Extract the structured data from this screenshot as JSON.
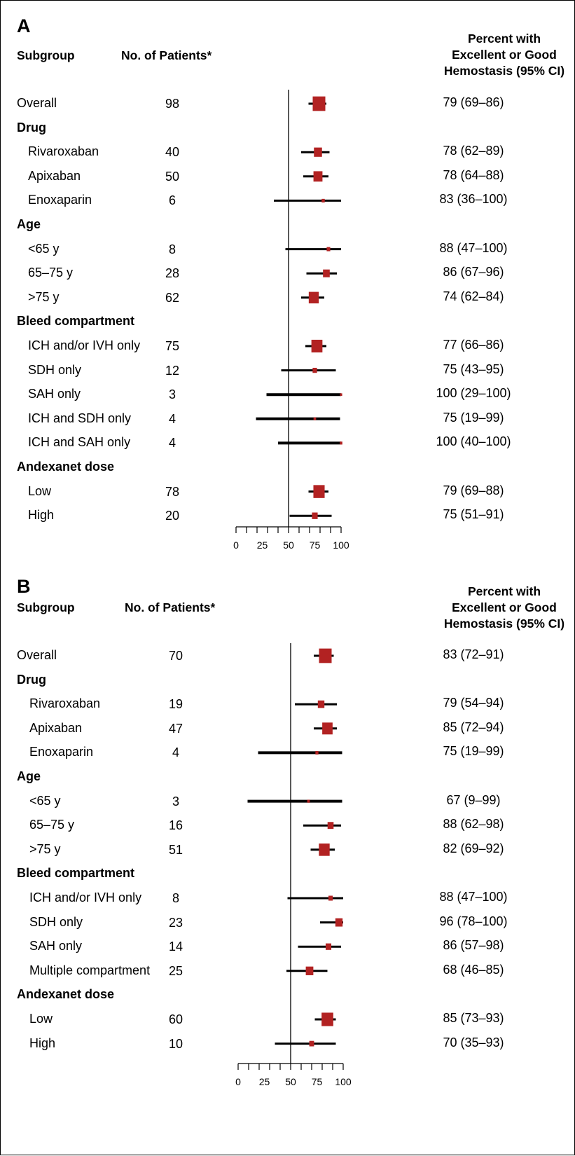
{
  "chart_data": [
    {
      "type": "forest",
      "panel": "A",
      "header": {
        "subgroup": "Subgroup",
        "n": "No. of Patients*",
        "ci": [
          "Percent with",
          "Excellent or Good",
          "Hemostasis (95% CI)"
        ]
      },
      "xlim": [
        0,
        100
      ],
      "xticks": [
        "0",
        "25",
        "50",
        "75",
        "100"
      ],
      "xtick_values": [
        0,
        25,
        50,
        75,
        100
      ],
      "refline": 50,
      "color": "#b22222",
      "rows": [
        {
          "label": "Overall",
          "group": false,
          "indent": false,
          "n": "98",
          "estimate": 79,
          "lo": 69,
          "hi": 86,
          "ci": "79 (69–86)"
        },
        {
          "label": "Drug",
          "group": true
        },
        {
          "label": "Rivaroxaban",
          "group": false,
          "indent": true,
          "n": "40",
          "estimate": 78,
          "lo": 62,
          "hi": 89,
          "ci": "78 (62–89)"
        },
        {
          "label": "Apixaban",
          "group": false,
          "indent": true,
          "n": "50",
          "estimate": 78,
          "lo": 64,
          "hi": 88,
          "ci": "78 (64–88)"
        },
        {
          "label": "Enoxaparin",
          "group": false,
          "indent": true,
          "n": "6",
          "estimate": 83,
          "lo": 36,
          "hi": 100,
          "ci": "83 (36–100)"
        },
        {
          "label": "Age",
          "group": true
        },
        {
          "label": "<65 y",
          "group": false,
          "indent": true,
          "n": "8",
          "estimate": 88,
          "lo": 47,
          "hi": 100,
          "ci": "88 (47–100)"
        },
        {
          "label": "65–75 y",
          "group": false,
          "indent": true,
          "n": "28",
          "estimate": 86,
          "lo": 67,
          "hi": 96,
          "ci": "86 (67–96)"
        },
        {
          "label": ">75 y",
          "group": false,
          "indent": true,
          "n": "62",
          "estimate": 74,
          "lo": 62,
          "hi": 84,
          "ci": "74 (62–84)"
        },
        {
          "label": "Bleed compartment",
          "group": true
        },
        {
          "label": "ICH and/or IVH only",
          "group": false,
          "indent": true,
          "n": "75",
          "estimate": 77,
          "lo": 66,
          "hi": 86,
          "ci": "77 (66–86)"
        },
        {
          "label": "SDH only",
          "group": false,
          "indent": true,
          "n": "12",
          "estimate": 75,
          "lo": 43,
          "hi": 95,
          "ci": "75 (43–95)"
        },
        {
          "label": "SAH only",
          "group": false,
          "indent": true,
          "n": "3",
          "estimate": 100,
          "lo": 29,
          "hi": 100,
          "ci": "100 (29–100)"
        },
        {
          "label": "ICH and SDH only",
          "group": false,
          "indent": true,
          "n": "4",
          "estimate": 75,
          "lo": 19,
          "hi": 99,
          "ci": "75 (19–99)"
        },
        {
          "label": "ICH and SAH only",
          "group": false,
          "indent": true,
          "n": "4",
          "estimate": 100,
          "lo": 40,
          "hi": 100,
          "ci": "100 (40–100)"
        },
        {
          "label": "Andexanet dose",
          "group": true
        },
        {
          "label": "Low",
          "group": false,
          "indent": true,
          "n": "78",
          "estimate": 79,
          "lo": 69,
          "hi": 88,
          "ci": "79 (69–88)"
        },
        {
          "label": "High",
          "group": false,
          "indent": true,
          "n": "20",
          "estimate": 75,
          "lo": 51,
          "hi": 91,
          "ci": "75 (51–91)"
        }
      ]
    },
    {
      "type": "forest",
      "panel": "B",
      "header": {
        "subgroup": "Subgroup",
        "n": "No. of Patients*",
        "ci": [
          "Percent with",
          "Excellent or Good",
          "Hemostasis (95% CI)"
        ]
      },
      "xlim": [
        0,
        100
      ],
      "xticks": [
        "0",
        "25",
        "50",
        "75",
        "100"
      ],
      "xtick_values": [
        0,
        25,
        50,
        75,
        100
      ],
      "refline": 50,
      "color": "#b22222",
      "rows": [
        {
          "label": "Overall",
          "group": false,
          "indent": false,
          "n": "70",
          "estimate": 83,
          "lo": 72,
          "hi": 91,
          "ci": "83 (72–91)"
        },
        {
          "label": "Drug",
          "group": true
        },
        {
          "label": "Rivaroxaban",
          "group": false,
          "indent": true,
          "n": "19",
          "estimate": 79,
          "lo": 54,
          "hi": 94,
          "ci": "79 (54–94)"
        },
        {
          "label": "Apixaban",
          "group": false,
          "indent": true,
          "n": "47",
          "estimate": 85,
          "lo": 72,
          "hi": 94,
          "ci": "85 (72–94)"
        },
        {
          "label": "Enoxaparin",
          "group": false,
          "indent": true,
          "n": "4",
          "estimate": 75,
          "lo": 19,
          "hi": 99,
          "ci": "75 (19–99)"
        },
        {
          "label": "Age",
          "group": true
        },
        {
          "label": "<65 y",
          "group": false,
          "indent": true,
          "n": "3",
          "estimate": 67,
          "lo": 9,
          "hi": 99,
          "ci": "67 (9–99)"
        },
        {
          "label": "65–75 y",
          "group": false,
          "indent": true,
          "n": "16",
          "estimate": 88,
          "lo": 62,
          "hi": 98,
          "ci": "88 (62–98)"
        },
        {
          "label": ">75 y",
          "group": false,
          "indent": true,
          "n": "51",
          "estimate": 82,
          "lo": 69,
          "hi": 92,
          "ci": "82 (69–92)"
        },
        {
          "label": "Bleed compartment",
          "group": true
        },
        {
          "label": "ICH and/or IVH only",
          "group": false,
          "indent": true,
          "n": "8",
          "estimate": 88,
          "lo": 47,
          "hi": 100,
          "ci": "88 (47–100)"
        },
        {
          "label": "SDH only",
          "group": false,
          "indent": true,
          "n": "23",
          "estimate": 96,
          "lo": 78,
          "hi": 100,
          "ci": "96 (78–100)"
        },
        {
          "label": "SAH only",
          "group": false,
          "indent": true,
          "n": "14",
          "estimate": 86,
          "lo": 57,
          "hi": 98,
          "ci": "86 (57–98)"
        },
        {
          "label": "Multiple compartment",
          "group": false,
          "indent": true,
          "n": "25",
          "estimate": 68,
          "lo": 46,
          "hi": 85,
          "ci": "68 (46–85)"
        },
        {
          "label": "Andexanet dose",
          "group": true
        },
        {
          "label": "Low",
          "group": false,
          "indent": true,
          "n": "60",
          "estimate": 85,
          "lo": 73,
          "hi": 93,
          "ci": "85 (73–93)"
        },
        {
          "label": "High",
          "group": false,
          "indent": true,
          "n": "10",
          "estimate": 70,
          "lo": 35,
          "hi": 93,
          "ci": "70 (35–93)"
        }
      ]
    }
  ]
}
